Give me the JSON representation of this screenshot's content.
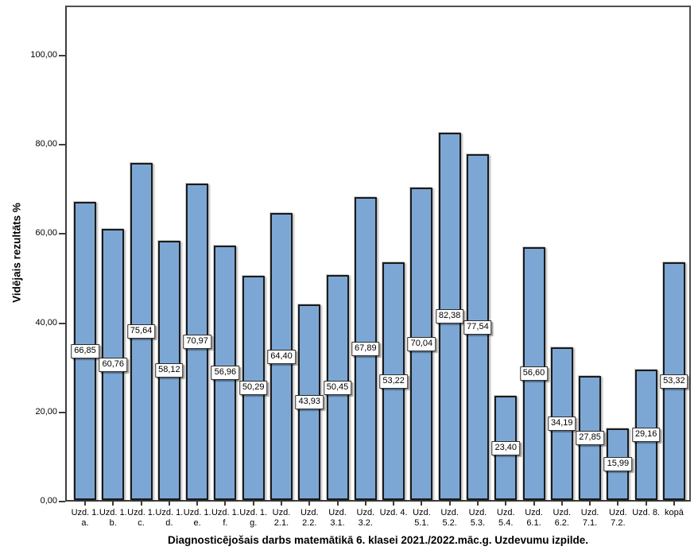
{
  "chart_data": {
    "type": "bar",
    "title": "Diagnosticējošais darbs matemātikā 6. klasei 2021./2022.māc.g. Uzdevumu izpilde.",
    "ylabel": "Vidējais rezultāts %",
    "xlabel": "",
    "ylim": [
      0,
      111
    ],
    "grid": false,
    "legend": "none",
    "value_label_position": "middle-of-bar",
    "colors": {
      "bar_fill": "#7ca7d4",
      "bar_border": "#1b1b1b",
      "frame_border": "#4f4f4f",
      "background": "#ffffff",
      "text": "#000000"
    },
    "yticks": [
      {
        "value": 0,
        "label": "0,00"
      },
      {
        "value": 20,
        "label": "20,00"
      },
      {
        "value": 40,
        "label": "40,00"
      },
      {
        "value": 60,
        "label": "60,00"
      },
      {
        "value": 80,
        "label": "80,00"
      },
      {
        "value": 100,
        "label": "100,00"
      }
    ],
    "categories": [
      {
        "label": "Uzd. 1. a.",
        "label_lines": [
          "Uzd. 1.",
          "a."
        ],
        "value": 66.85,
        "value_display": "66,85"
      },
      {
        "label": "Uzd. 1. b.",
        "label_lines": [
          "Uzd. 1.",
          "b."
        ],
        "value": 60.76,
        "value_display": "60,76"
      },
      {
        "label": "Uzd. 1. c.",
        "label_lines": [
          "Uzd. 1.",
          "c."
        ],
        "value": 75.64,
        "value_display": "75,64"
      },
      {
        "label": "Uzd. 1. d.",
        "label_lines": [
          "Uzd. 1.",
          "d."
        ],
        "value": 58.12,
        "value_display": "58,12"
      },
      {
        "label": "Uzd. 1. e.",
        "label_lines": [
          "Uzd. 1.",
          "e."
        ],
        "value": 70.97,
        "value_display": "70,97"
      },
      {
        "label": "Uzd. 1. f.",
        "label_lines": [
          "Uzd. 1.",
          "f."
        ],
        "value": 56.96,
        "value_display": "56,96"
      },
      {
        "label": "Uzd. 1. g.",
        "label_lines": [
          "Uzd. 1.",
          "g."
        ],
        "value": 50.29,
        "value_display": "50,29"
      },
      {
        "label": "Uzd. 2.1.",
        "label_lines": [
          "Uzd.",
          "2.1."
        ],
        "value": 64.4,
        "value_display": "64,40"
      },
      {
        "label": "Uzd. 2.2.",
        "label_lines": [
          "Uzd.",
          "2.2."
        ],
        "value": 43.93,
        "value_display": "43,93"
      },
      {
        "label": "Uzd. 3.1.",
        "label_lines": [
          "Uzd.",
          "3.1."
        ],
        "value": 50.45,
        "value_display": "50,45"
      },
      {
        "label": "Uzd. 3.2.",
        "label_lines": [
          "Uzd.",
          "3.2."
        ],
        "value": 67.89,
        "value_display": "67,89"
      },
      {
        "label": "Uzd. 4.",
        "label_lines": [
          "Uzd. 4."
        ],
        "value": 53.22,
        "value_display": "53,22"
      },
      {
        "label": "Uzd. 5.1.",
        "label_lines": [
          "Uzd.",
          "5.1."
        ],
        "value": 70.04,
        "value_display": "70,04"
      },
      {
        "label": "Uzd. 5.2.",
        "label_lines": [
          "Uzd.",
          "5.2."
        ],
        "value": 82.38,
        "value_display": "82,38"
      },
      {
        "label": "Uzd. 5.3.",
        "label_lines": [
          "Uzd.",
          "5.3."
        ],
        "value": 77.54,
        "value_display": "77,54"
      },
      {
        "label": "Uzd. 5.4.",
        "label_lines": [
          "Uzd.",
          "5.4."
        ],
        "value": 23.4,
        "value_display": "23,40"
      },
      {
        "label": "Uzd. 6.1.",
        "label_lines": [
          "Uzd.",
          "6.1."
        ],
        "value": 56.6,
        "value_display": "56,60"
      },
      {
        "label": "Uzd. 6.2.",
        "label_lines": [
          "Uzd.",
          "6.2."
        ],
        "value": 34.19,
        "value_display": "34,19"
      },
      {
        "label": "Uzd. 7.1.",
        "label_lines": [
          "Uzd.",
          "7.1."
        ],
        "value": 27.85,
        "value_display": "27,85"
      },
      {
        "label": "Uzd. 7.2.",
        "label_lines": [
          "Uzd.",
          "7.2."
        ],
        "value": 15.99,
        "value_display": "15,99"
      },
      {
        "label": "Uzd. 8.",
        "label_lines": [
          "Uzd. 8."
        ],
        "value": 29.16,
        "value_display": "29,16"
      },
      {
        "label": "kopā",
        "label_lines": [
          "kopā"
        ],
        "value": 53.32,
        "value_display": "53,32"
      }
    ]
  }
}
